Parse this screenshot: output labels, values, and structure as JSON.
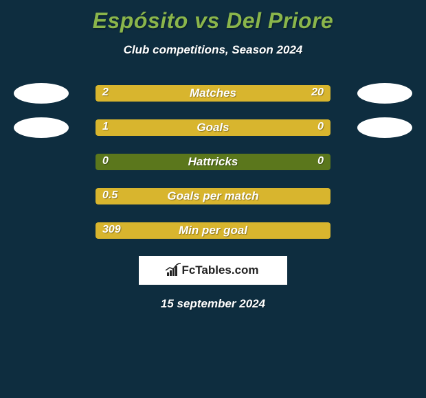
{
  "colors": {
    "page_bg": "#0e2d3f",
    "title_color": "#8ab54b",
    "subtitle_color": "#ffffff",
    "bar_track": "#5b771c",
    "bar_fill": "#d8b52e",
    "bar_text": "#ffffff",
    "avatar_bg": "#ffffff",
    "logo_bg": "#ffffff",
    "date_color": "#ffffff"
  },
  "title": "Espósito vs Del Priore",
  "subtitle": "Club competitions, Season 2024",
  "rows": [
    {
      "label": "Matches",
      "left_value": "2",
      "right_value": "20",
      "left_width_pct": 9,
      "right_width_pct": 91,
      "show_left_avatar": true,
      "show_right_avatar": true
    },
    {
      "label": "Goals",
      "left_value": "1",
      "right_value": "0",
      "left_width_pct": 80,
      "right_width_pct": 20,
      "show_left_avatar": true,
      "show_right_avatar": true
    },
    {
      "label": "Hattricks",
      "left_value": "0",
      "right_value": "0",
      "left_width_pct": 0,
      "right_width_pct": 0,
      "show_left_avatar": false,
      "show_right_avatar": false
    },
    {
      "label": "Goals per match",
      "left_value": "0.5",
      "right_value": "",
      "left_width_pct": 100,
      "right_width_pct": 0,
      "show_left_avatar": false,
      "show_right_avatar": false
    },
    {
      "label": "Min per goal",
      "left_value": "309",
      "right_value": "",
      "left_width_pct": 100,
      "right_width_pct": 0,
      "show_left_avatar": false,
      "show_right_avatar": false
    }
  ],
  "logo": {
    "text_left": "FcTables",
    "text_right": ".com"
  },
  "date": "15 september 2024"
}
